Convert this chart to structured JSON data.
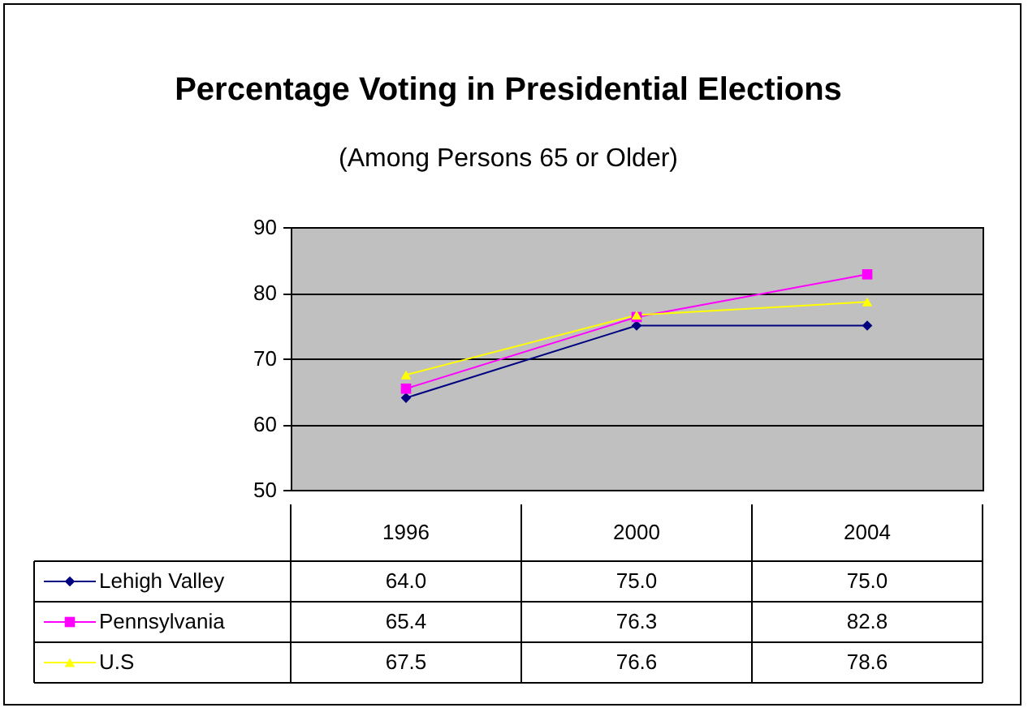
{
  "chart_data": {
    "type": "line",
    "title": "Percentage Voting in Presidential Elections",
    "subtitle": "(Among Persons 65 or Older)",
    "categories": [
      "1996",
      "2000",
      "2004"
    ],
    "series": [
      {
        "name": "Lehigh Valley",
        "color": "#000080",
        "marker": "diamond",
        "values": [
          64.0,
          75.0,
          75.0
        ],
        "value_labels": [
          "64.0",
          "75.0",
          "75.0"
        ]
      },
      {
        "name": "Pennsylvania",
        "color": "#ff00ff",
        "marker": "square",
        "values": [
          65.4,
          76.3,
          82.8
        ],
        "value_labels": [
          "65.4",
          "76.3",
          "82.8"
        ]
      },
      {
        "name": "U.S",
        "color": "#ffff00",
        "marker": "triangle",
        "values": [
          67.5,
          76.6,
          78.6
        ],
        "value_labels": [
          "67.5",
          "76.6",
          "78.6"
        ]
      }
    ],
    "ylim": [
      50,
      90
    ],
    "yticks": [
      50,
      60,
      70,
      80,
      90
    ],
    "grid": "y",
    "legend": "bottom"
  }
}
